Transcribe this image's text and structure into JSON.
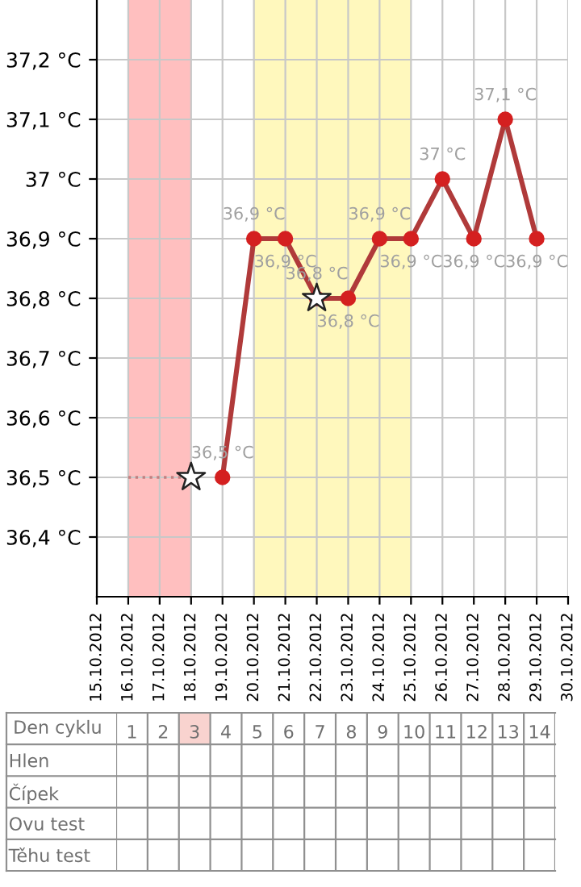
{
  "chart_data": [
    {
      "type": "line",
      "categories": [
        "15.10.2012",
        "16.10.2012",
        "17.10.2012",
        "18.10.2012",
        "19.10.2012",
        "20.10.2012",
        "21.10.2012",
        "22.10.2012",
        "23.10.2012",
        "24.10.2012",
        "25.10.2012",
        "26.10.2012",
        "27.10.2012",
        "28.10.2012",
        "29.10.2012",
        "30.10.2012"
      ],
      "series": [
        {
          "color": "#b03a3a",
          "marker": "circle",
          "values": [
            null,
            null,
            null,
            null,
            36.5,
            36.9,
            36.9,
            36.8,
            36.8,
            36.9,
            36.9,
            37.0,
            36.9,
            37.1,
            36.9,
            null
          ],
          "value_labels": [
            null,
            null,
            null,
            null,
            "36,5 °C",
            "36,9 °C",
            "36,9 °C",
            "36,8 °C",
            "36,8 °C",
            "36,9 °C",
            "36,9 °C",
            "37 °C",
            "36,9 °C",
            "37,1 °C",
            "36,9 °C",
            null
          ]
        },
        {
          "color": "#c08080",
          "line_style": "dotted",
          "marker": "none",
          "values": [
            null,
            36.5,
            36.5,
            36.5,
            null,
            null,
            null,
            null,
            null,
            null,
            null,
            null,
            null,
            null,
            null,
            null
          ]
        },
        {
          "type": "scatter",
          "color": "#ffffff",
          "marker": "star",
          "values": [
            null,
            null,
            null,
            36.5,
            null,
            null,
            null,
            36.8,
            null,
            null,
            null,
            null,
            null,
            null,
            null,
            null
          ]
        }
      ],
      "ylim": [
        36.3,
        37.3
      ],
      "yticks": [
        {
          "value": 36.4,
          "label": "36,4 °C"
        },
        {
          "value": 36.5,
          "label": "36,5 °C"
        },
        {
          "value": 36.6,
          "label": "36,6 °C"
        },
        {
          "value": 36.7,
          "label": "36,7 °C"
        },
        {
          "value": 36.8,
          "label": "36,8 °C"
        },
        {
          "value": 36.9,
          "label": "36,9 °C"
        },
        {
          "value": 37.0,
          "label": "37 °C"
        },
        {
          "value": 37.1,
          "label": "37,1 °C"
        },
        {
          "value": 37.2,
          "label": "37,2 °C"
        }
      ],
      "bands": [
        {
          "axis": "x",
          "from": "16.10.2012",
          "to": "18.10.2012",
          "color": "#ffbfbf"
        },
        {
          "axis": "x",
          "from": "20.10.2012",
          "to": "25.10.2012",
          "color": "#fff8bd"
        }
      ],
      "grid": true,
      "legend": false
    },
    {
      "type": "heatmap",
      "xlabel": "Den cyklu",
      "categories": [
        "1",
        "2",
        "3",
        "4",
        "5",
        "6",
        "7",
        "8",
        "9",
        "10",
        "11",
        "12",
        "13",
        "14"
      ],
      "y_categories": [
        "Hlen",
        "Čípek",
        "Ovu test",
        "Těhu test"
      ],
      "cells": [
        [
          null,
          null,
          null,
          null,
          null,
          null,
          null,
          null,
          null,
          null,
          null,
          null,
          null,
          null
        ],
        [
          null,
          null,
          null,
          null,
          null,
          null,
          null,
          null,
          null,
          null,
          null,
          null,
          null,
          null
        ],
        [
          null,
          null,
          null,
          null,
          null,
          null,
          null,
          null,
          null,
          null,
          null,
          null,
          null,
          null
        ],
        [
          null,
          null,
          null,
          null,
          null,
          null,
          null,
          null,
          null,
          null,
          null,
          null,
          null,
          null
        ]
      ],
      "bands": [
        {
          "axis": "x",
          "from": "3",
          "to": "3",
          "color": "#f9d3cf"
        }
      ]
    }
  ]
}
